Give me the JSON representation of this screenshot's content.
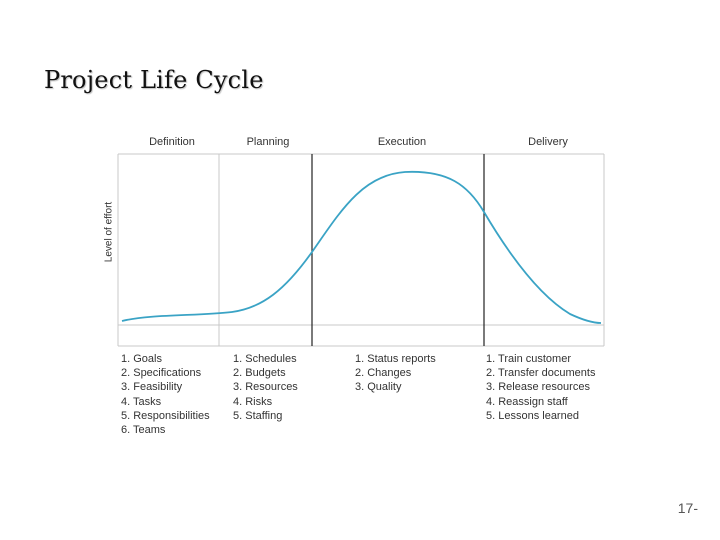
{
  "title": "Project Life Cycle",
  "colors": {
    "curve": "#3aa3c5",
    "grid": "#c8c8c8",
    "divider": "#222222"
  },
  "diagram": {
    "y_axis_label": "Level of effort",
    "phases": [
      {
        "name": "Definition",
        "tasks": [
          "1. Goals",
          "2. Specifications",
          "3. Feasibility",
          "4. Tasks",
          "5. Responsibilities",
          "6. Teams"
        ]
      },
      {
        "name": "Planning",
        "tasks": [
          "1. Schedules",
          "2. Budgets",
          "3. Resources",
          "4. Risks",
          "5. Staffing"
        ]
      },
      {
        "name": "Execution",
        "tasks": [
          "1. Status reports",
          "2. Changes",
          "3. Quality"
        ]
      },
      {
        "name": "Delivery",
        "tasks": [
          "1. Train customer",
          "2. Transfer documents",
          "3. Release resources",
          "4. Reassign staff",
          "5. Lessons learned"
        ]
      }
    ]
  },
  "page_number": "17-"
}
